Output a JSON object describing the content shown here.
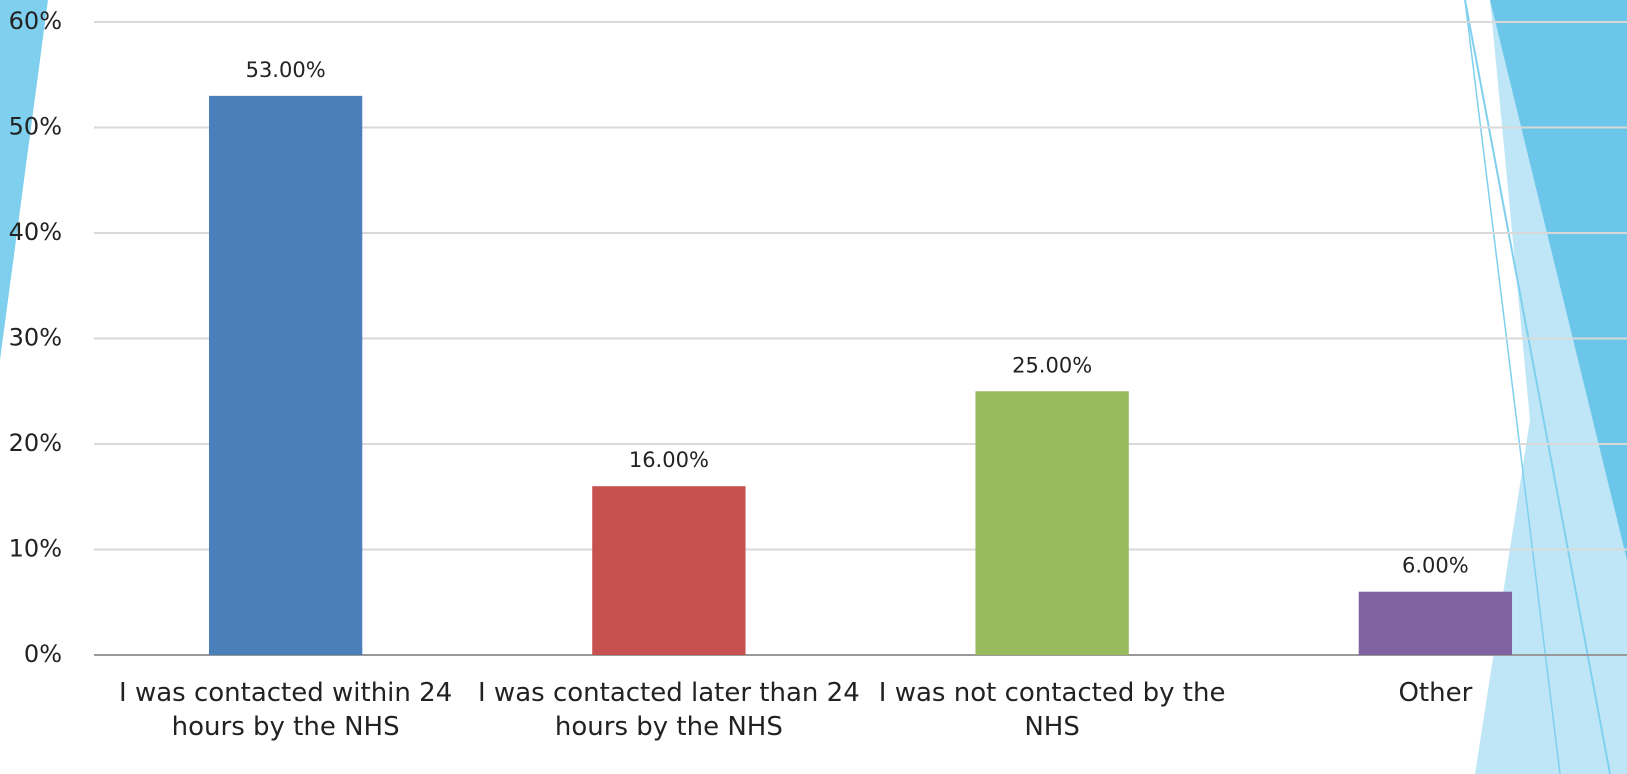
{
  "chart_data": {
    "type": "bar",
    "categories": [
      "I was contacted within 24 hours by the NHS",
      "I was contacted later than 24 hours by the NHS",
      "I was not contacted by the NHS",
      "Other"
    ],
    "values": [
      53,
      16,
      25,
      6
    ],
    "value_labels": [
      "53.00%",
      "16.00%",
      "25.00%",
      "6.00%"
    ],
    "colors": [
      "#4a7fba",
      "#c6514f",
      "#98b95d",
      "#8064a2"
    ],
    "ylim": [
      0,
      60
    ],
    "yticks": [
      {
        "value": 0,
        "label": "0%"
      },
      {
        "value": 10,
        "label": "10%"
      },
      {
        "value": 20,
        "label": "20%"
      },
      {
        "value": 30,
        "label": "30%"
      },
      {
        "value": 40,
        "label": "40%"
      },
      {
        "value": 50,
        "label": "50%"
      },
      {
        "value": 60,
        "label": "60%"
      }
    ],
    "grid": true
  }
}
